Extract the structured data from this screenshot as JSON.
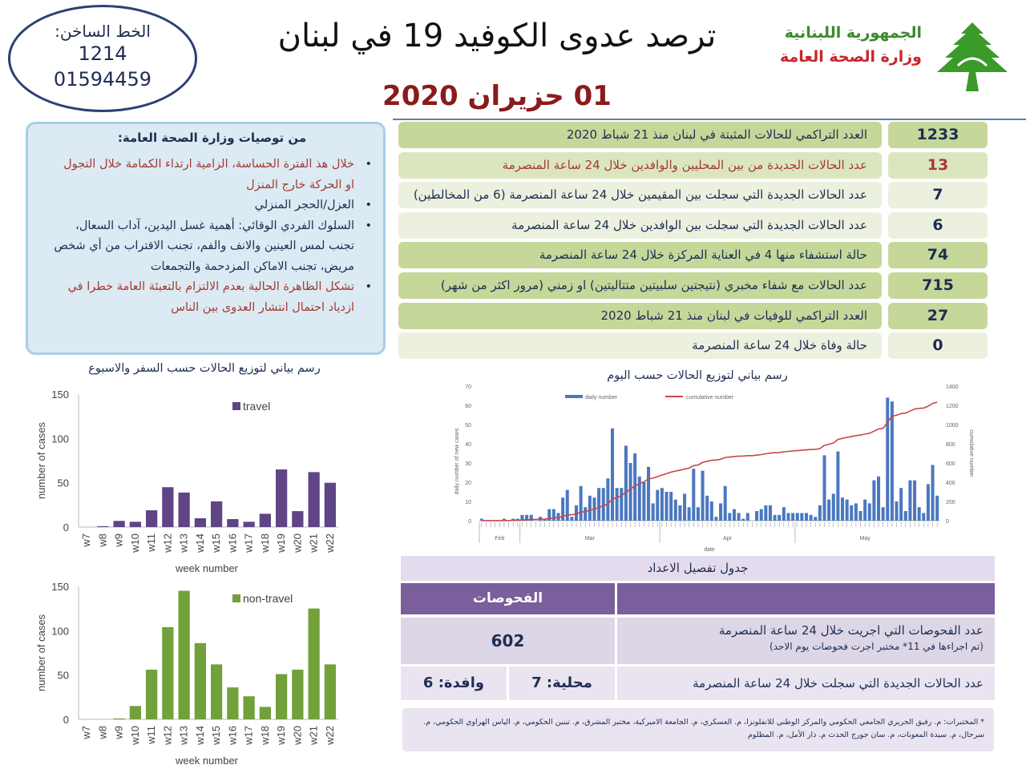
{
  "hotline": {
    "label": "الخط الساخن:",
    "number1": "1214",
    "number2": "01594459"
  },
  "header": {
    "title": "ترصد عدوى الكوفيد 19 في لبنان",
    "date": "01 حزيران 2020",
    "republic": "الجمهورية اللبنانية",
    "ministry": "وزارة الصحة العامة"
  },
  "recommendations": {
    "title": "من توصيات وزارة الصحة العامة:",
    "items": [
      "خلال هذ الفترة الحساسة، الزامية ارتداء الكمامة خلال التجول او الحركة خارج المنزل",
      "العزل/الحجر المنزلي",
      "السلوك الفردي الوقائي: أهمية غسل اليدين، آداب السعال، تجنب لمس العينين والانف والفم، تجنب الاقتراب من أي شخص مريض، تجنب الاماكن المزدحمة والتجمعات",
      "تشكل الظاهرة الحالية بعدم الالتزام بالتعبئة العامة خطرا في ازدياد احتمال انتشار العدوى بين الناس"
    ]
  },
  "stats": [
    {
      "value": "1233",
      "label": "العدد التراكمي للحالات المثبتة في لبنان منذ 21 شباط 2020"
    },
    {
      "value": "13",
      "label": "عدد الحالات الجديدة من بين المحليين والوافدين خلال 24 ساعة المنصرمة"
    },
    {
      "value": "7",
      "label": "عدد الحالات الجديدة التي سجلت بين المقيمين خلال 24 ساعة المنصرمة (6 من المخالطين)"
    },
    {
      "value": "6",
      "label": "عدد الحالات الجديدة التي سجلت بين الوافدين خلال 24 ساعة المنصرمة"
    },
    {
      "value": "74",
      "label": "حالة استشفاء منها 4 في العناية المركزة خلال 24 ساعة المنصرمة"
    },
    {
      "value": "715",
      "label": "عدد الحالات مع شفاء مخبري (نتيجتين سلبيتين متتاليتين) او زمني (مرور اكثر من شهر)"
    },
    {
      "value": "27",
      "label": "العدد التراكمي للوفيات في لبنان منذ 21 شباط 2020"
    },
    {
      "value": "0",
      "label": "حالة وفاة خلال 24 ساعة المنصرمة"
    }
  ],
  "weekly_title": "رسم بياني لتوزيع الحالات حسب السفر والاسبوع",
  "tests": {
    "caption": "جدول تفصيل الاعداد",
    "header": "الفحوصات",
    "tests_label": "عدد الفحوصات التي اجريت خلال 24 ساعة المنصرمة",
    "tests_note": "(تم اجراءها في 11* مختبر اجرت فحوصات يوم الاحد)",
    "tests_value": "602",
    "new_label": "عدد الحالات الجديدة التي سجلت خلال 24 ساعة المنصرمة",
    "local": "محلية: 7",
    "arrivals": "وافدة: 6"
  },
  "footnote": "* المختبرات: م. رفيق الحريري الجامعي الحكومي والمركز الوطني للانفلونزا، م. العسكري، م. الجامعة الاميركية، مختبر المشرق، م. تبنين الحكومي، م. الياس الهراوي الحكومي، م. سرحال، م. سيدة المعونات، م. سان جورج الحدث م. دار الأمل، م. المظلوم",
  "chart_data": [
    {
      "type": "bar",
      "title": "",
      "legend": "travel",
      "xlabel": "week number",
      "ylabel": "number of cases",
      "ylim": [
        0,
        150
      ],
      "yticks": [
        "0",
        "50",
        "100",
        "150"
      ],
      "color": "#5f4585",
      "categories": [
        "w7",
        "w8",
        "w9",
        "w10",
        "w11",
        "w12",
        "w13",
        "w14",
        "w15",
        "w16",
        "w17",
        "w18",
        "w19",
        "w20",
        "w21",
        "w22"
      ],
      "values": [
        0,
        1,
        7,
        6,
        19,
        45,
        39,
        10,
        29,
        9,
        6,
        15,
        65,
        18,
        62,
        50
      ]
    },
    {
      "type": "bar",
      "title": "",
      "legend": "non-travel",
      "xlabel": "week number",
      "ylabel": "number of cases",
      "ylim": [
        0,
        150
      ],
      "yticks": [
        "0",
        "50",
        "100",
        "150"
      ],
      "color": "#72a03a",
      "categories": [
        "w7",
        "w8",
        "w9",
        "w10",
        "w11",
        "w12",
        "w13",
        "w14",
        "w15",
        "w16",
        "w17",
        "w18",
        "w19",
        "w20",
        "w21",
        "w22"
      ],
      "values": [
        0,
        0,
        1,
        15,
        56,
        104,
        145,
        86,
        62,
        36,
        26,
        14,
        51,
        56,
        125,
        62
      ]
    },
    {
      "type": "bar+line",
      "title": "رسم بياني لتوزيع الحالات حسب اليوم",
      "xlabel": "date",
      "ylabel": "daily number of new cases",
      "y2label": "cumulative number",
      "legend": [
        "daily number",
        "cumulative number"
      ],
      "ylim": [
        0,
        70
      ],
      "y2lim": [
        0,
        1400
      ],
      "yticks": [
        "0",
        "10",
        "20",
        "30",
        "40",
        "50",
        "60",
        "70"
      ],
      "y2ticks": [
        "0",
        "200",
        "400",
        "600",
        "800",
        "1000",
        "1200",
        "1400"
      ],
      "months": [
        "Feb",
        "Mar",
        "Apr",
        "May"
      ],
      "start": "21 Feb",
      "end": "1 Jun",
      "daily": [
        1,
        0,
        0,
        0,
        0,
        1,
        0,
        1,
        1,
        3,
        3,
        3,
        0,
        2,
        1,
        6,
        6,
        4,
        12,
        16,
        2,
        8,
        18,
        7,
        13,
        12,
        17,
        17,
        22,
        48,
        17,
        17,
        39,
        30,
        35,
        23,
        20,
        28,
        9,
        16,
        17,
        15,
        15,
        11,
        8,
        14,
        7,
        27,
        7,
        26,
        13,
        10,
        2,
        9,
        18,
        4,
        6,
        4,
        1,
        4,
        0,
        5,
        6,
        8,
        8,
        3,
        3,
        7,
        4,
        4,
        4,
        4,
        4,
        3,
        2,
        8,
        34,
        11,
        14,
        36,
        12,
        11,
        8,
        9,
        5,
        11,
        9,
        21,
        23,
        7,
        64,
        62,
        10,
        17,
        5,
        21,
        21,
        7,
        4,
        19,
        29,
        13
      ],
      "cumulative_end": 1233
    }
  ],
  "colors": {
    "navy": "#1f2d52",
    "darkred": "#8b1a1a",
    "green": "#3a8a2a",
    "purple": "#7b5e9c"
  }
}
